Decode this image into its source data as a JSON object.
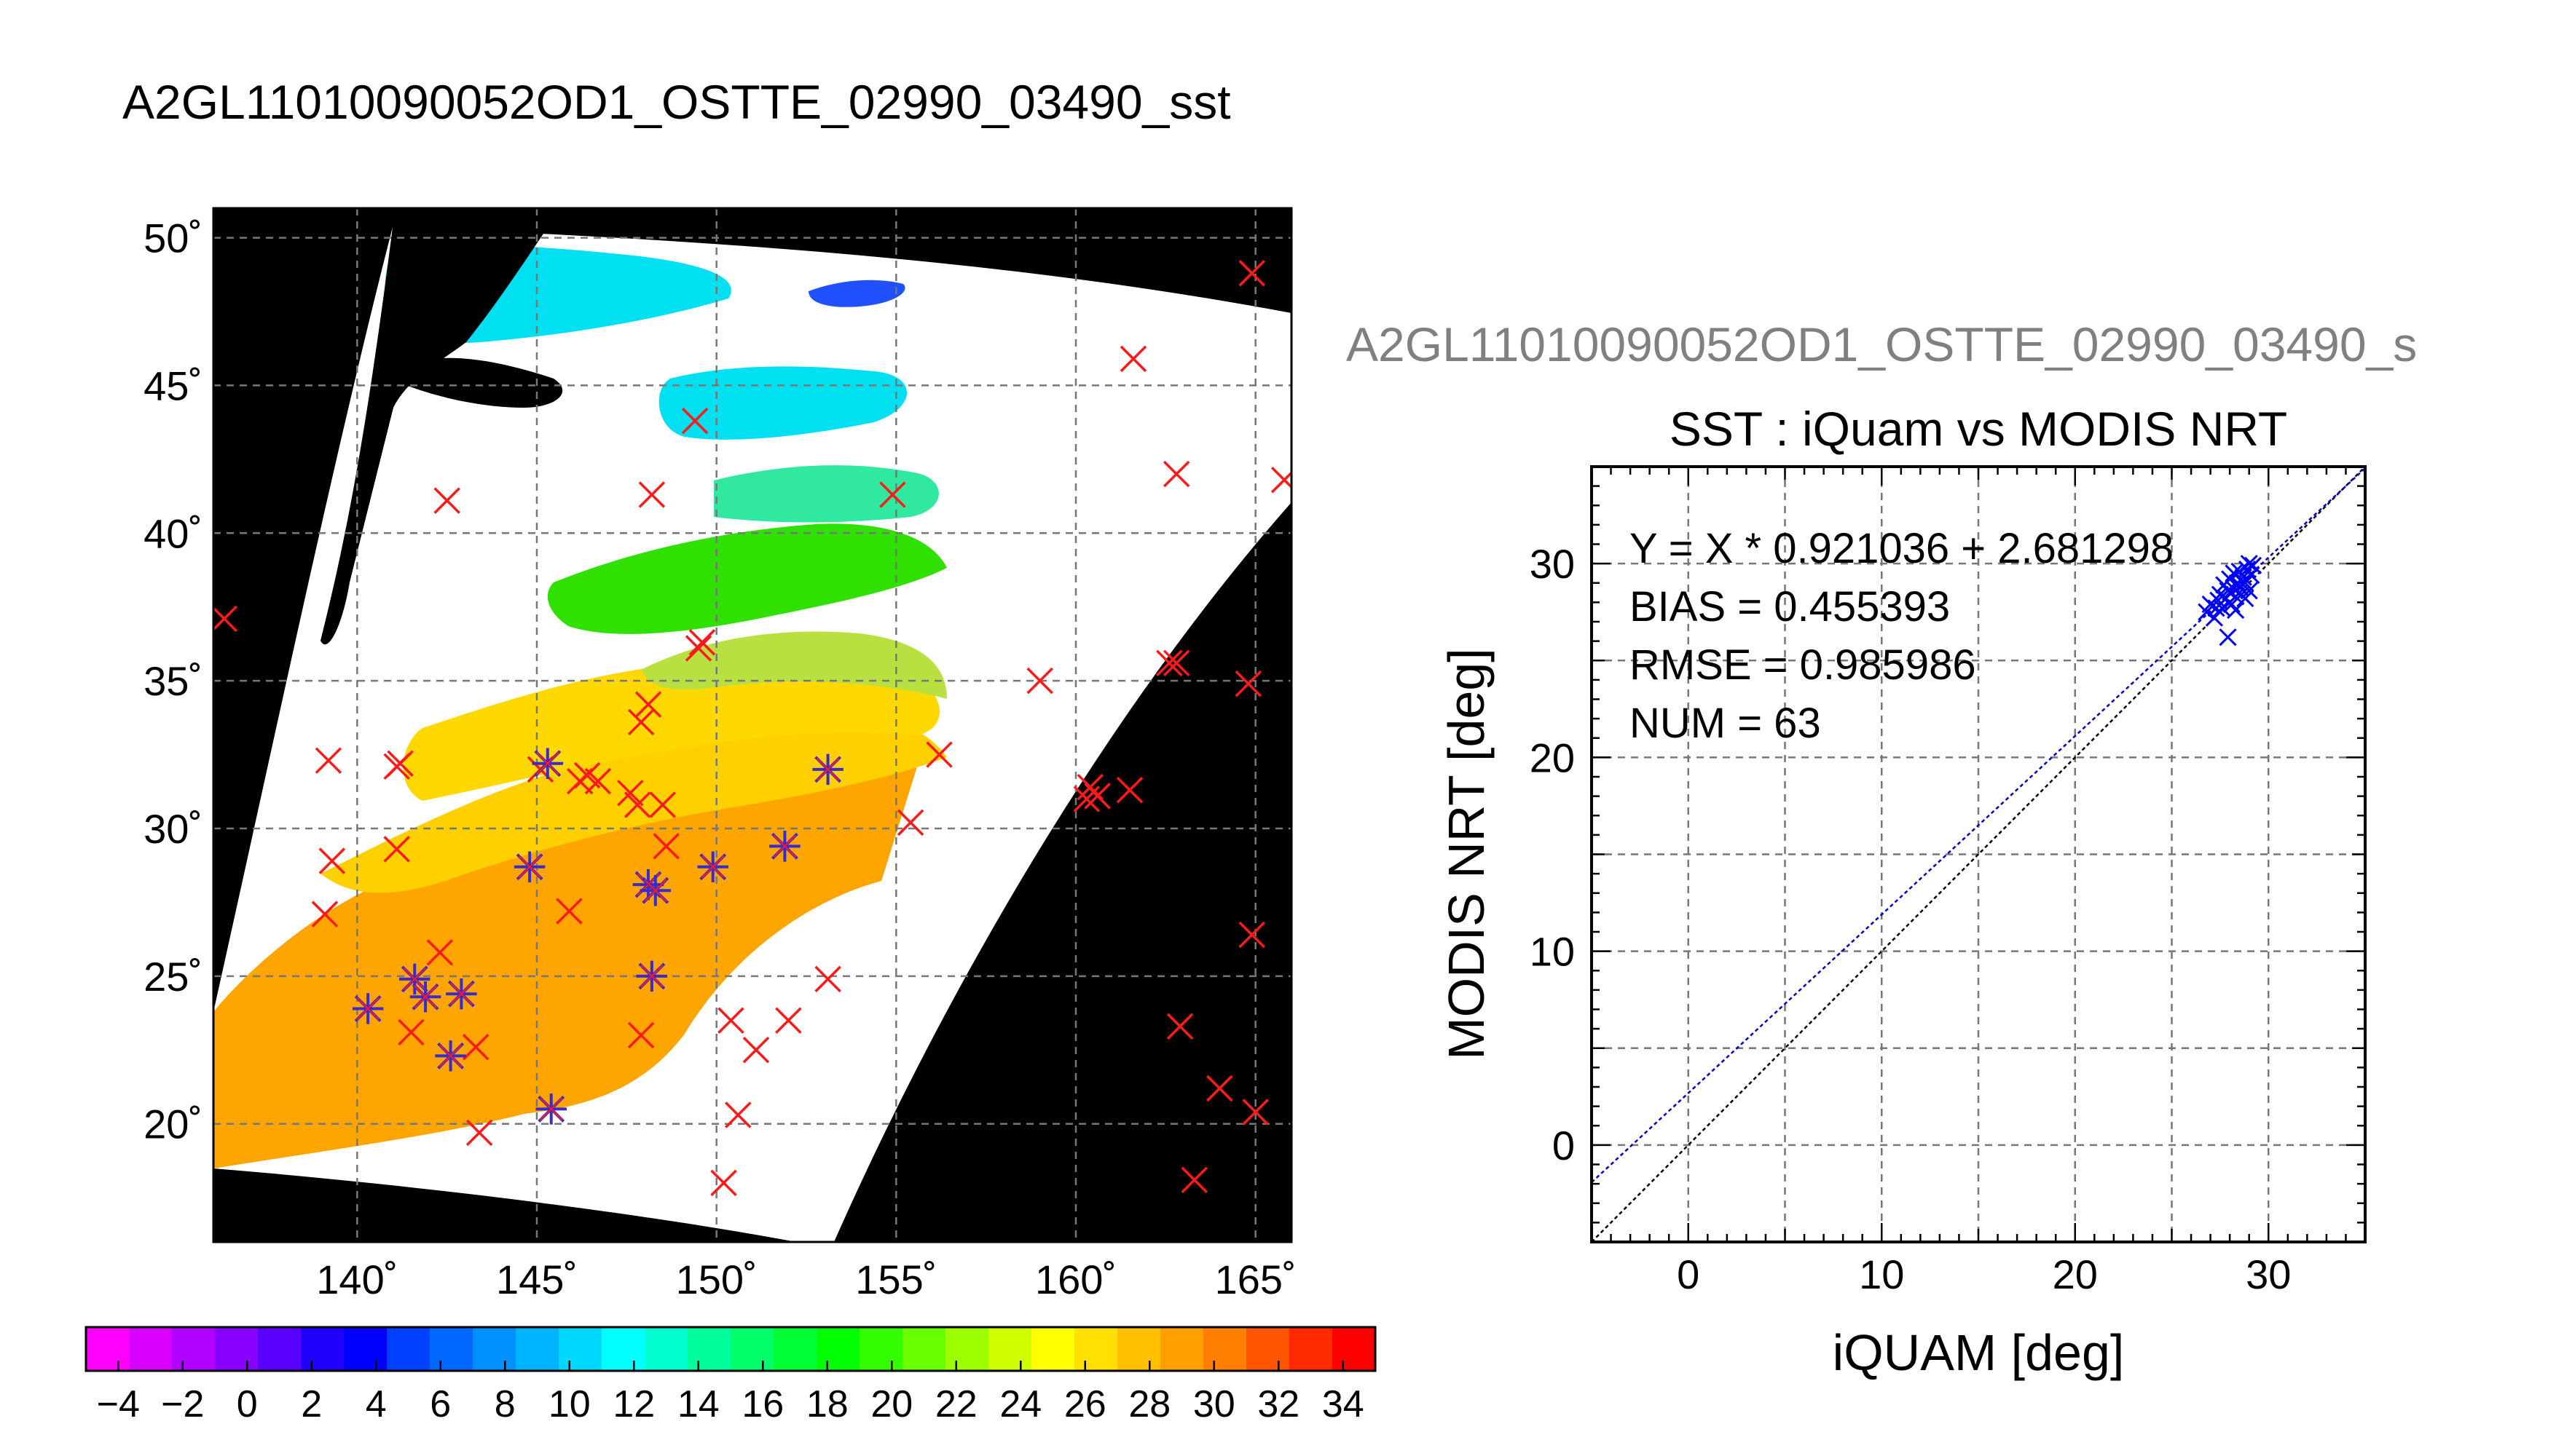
{
  "header": {
    "title": "A2GL11010090052OD1_OSTTE_02990_03490_sst"
  },
  "chart_data": [
    {
      "type": "map",
      "xlim": [
        136,
        166
      ],
      "ylim": [
        16,
        51
      ],
      "x_ticks": [
        140,
        145,
        150,
        155,
        160,
        165
      ],
      "y_ticks": [
        20,
        25,
        30,
        35,
        40,
        45,
        50
      ],
      "x_tick_labels": [
        "140˚",
        "145˚",
        "150˚",
        "155˚",
        "160˚",
        "165˚"
      ],
      "y_tick_labels": [
        "20˚",
        "25˚",
        "30˚",
        "35˚",
        "40˚",
        "45˚",
        "50˚"
      ],
      "grid": true,
      "colors": {
        "background": "#000000",
        "no_data": "#ffffff",
        "matched_marker": "#3a2bd0",
        "unmatched_marker": "#ff1a1a"
      },
      "sst_zones": [
        {
          "name": "30",
          "color": "#ffa500"
        },
        {
          "name": "28",
          "color": "#ffd000"
        },
        {
          "name": "24",
          "color": "#b8e040"
        },
        {
          "name": "18",
          "color": "#30e000"
        },
        {
          "name": "14",
          "color": "#30e8a0"
        },
        {
          "name": "10",
          "color": "#00e0f0"
        },
        {
          "name": "6",
          "color": "#2050ff"
        }
      ],
      "matched_points": [
        [
          140.3,
          23.9
        ],
        [
          141.6,
          24.9
        ],
        [
          141.9,
          24.3
        ],
        [
          142.6,
          22.3
        ],
        [
          142.9,
          24.4
        ],
        [
          144.8,
          28.7
        ],
        [
          145.3,
          32.2
        ],
        [
          148.1,
          28.1
        ],
        [
          148.3,
          27.9
        ],
        [
          148.2,
          25.0
        ],
        [
          149.9,
          28.7
        ],
        [
          151.9,
          29.4
        ],
        [
          153.1,
          32.0
        ],
        [
          145.4,
          20.5
        ]
      ],
      "unmatched_points": [
        [
          136.3,
          37.1
        ],
        [
          139.2,
          32.3
        ],
        [
          139.3,
          28.9
        ],
        [
          139.1,
          27.1
        ],
        [
          141.1,
          32.1
        ],
        [
          141.2,
          32.2
        ],
        [
          141.1,
          29.3
        ],
        [
          142.5,
          41.1
        ],
        [
          142.3,
          25.8
        ],
        [
          141.5,
          23.1
        ],
        [
          143.3,
          22.6
        ],
        [
          143.4,
          19.7
        ],
        [
          145.1,
          32.0
        ],
        [
          146.2,
          31.6
        ],
        [
          146.4,
          31.8
        ],
        [
          146.7,
          31.6
        ],
        [
          147.6,
          31.2
        ],
        [
          147.8,
          30.8
        ],
        [
          145.9,
          27.2
        ],
        [
          148.1,
          34.2
        ],
        [
          147.9,
          33.6
        ],
        [
          148.5,
          30.8
        ],
        [
          148.6,
          29.4
        ],
        [
          147.9,
          23.0
        ],
        [
          148.2,
          41.3
        ],
        [
          149.4,
          43.8
        ],
        [
          149.5,
          36.1
        ],
        [
          149.6,
          36.3
        ],
        [
          150.4,
          23.5
        ],
        [
          150.6,
          20.3
        ],
        [
          150.2,
          18.0
        ],
        [
          151.1,
          22.5
        ],
        [
          152.0,
          23.5
        ],
        [
          153.1,
          24.9
        ],
        [
          154.9,
          41.3
        ],
        [
          155.4,
          30.2
        ],
        [
          156.2,
          32.5
        ],
        [
          159.0,
          35.0
        ],
        [
          160.4,
          31.4
        ],
        [
          160.3,
          31.0
        ],
        [
          160.6,
          31.1
        ],
        [
          161.5,
          31.3
        ],
        [
          161.6,
          45.9
        ],
        [
          162.8,
          42.0
        ],
        [
          162.6,
          35.6
        ],
        [
          162.8,
          35.6
        ],
        [
          162.9,
          23.3
        ],
        [
          163.3,
          18.1
        ],
        [
          164.0,
          21.2
        ],
        [
          164.9,
          48.8
        ],
        [
          164.8,
          34.9
        ],
        [
          164.9,
          26.4
        ],
        [
          165.0,
          20.4
        ],
        [
          165.8,
          41.8
        ]
      ]
    },
    {
      "type": "colorbar",
      "range": [
        -5,
        35
      ],
      "tick_labels": [
        "−4",
        "−2",
        "0",
        "2",
        "4",
        "6",
        "8",
        "10",
        "12",
        "14",
        "16",
        "18",
        "20",
        "22",
        "24",
        "26",
        "28",
        "30",
        "32",
        "34"
      ],
      "bins": [
        "#ff00ff",
        "#d800ff",
        "#b000ff",
        "#8800ff",
        "#5a00ff",
        "#2000ff",
        "#0000ff",
        "#0040ff",
        "#0068ff",
        "#0090ff",
        "#00b4ff",
        "#00d8ff",
        "#00ffff",
        "#00ffd0",
        "#00ff9c",
        "#00ff68",
        "#00ff34",
        "#00ff00",
        "#34ff00",
        "#68ff00",
        "#9cff00",
        "#d0ff00",
        "#ffff00",
        "#ffe000",
        "#ffc000",
        "#ffa000",
        "#ff8000",
        "#ff5400",
        "#ff2a00",
        "#ff0000"
      ]
    },
    {
      "type": "scatter",
      "suptitle": "A2GL11010090052OD1_OSTTE_02990_03490_s",
      "title": "SST : iQuam vs MODIS NRT",
      "xlabel": "iQUAM [deg]",
      "ylabel": "MODIS NRT [deg]",
      "xlim": [
        -5,
        35
      ],
      "ylim": [
        -5,
        35
      ],
      "x_ticks": [
        0,
        10,
        20,
        30
      ],
      "y_ticks": [
        0,
        10,
        20,
        30
      ],
      "grid": true,
      "annotations": [
        "Y = X * 0.921036 + 2.681298",
        "BIAS = 0.455393",
        "RMSE = 0.985986",
        "NUM = 63"
      ],
      "fit": {
        "slope": 0.921036,
        "intercept": 2.681298,
        "color": "#0000cc"
      },
      "reference": {
        "slope": 1,
        "intercept": 0,
        "color": "#000000"
      },
      "marker_color": "#0000ff",
      "points": [
        [
          26.8,
          27.5
        ],
        [
          27.0,
          27.9
        ],
        [
          27.2,
          27.2
        ],
        [
          27.4,
          28.1
        ],
        [
          27.5,
          28.4
        ],
        [
          27.6,
          27.7
        ],
        [
          27.7,
          28.9
        ],
        [
          27.8,
          28.2
        ],
        [
          27.9,
          26.2
        ],
        [
          27.9,
          28.6
        ],
        [
          28.0,
          29.2
        ],
        [
          28.1,
          27.9
        ],
        [
          28.2,
          28.7
        ],
        [
          28.2,
          29.5
        ],
        [
          28.3,
          28.3
        ],
        [
          28.4,
          29.0
        ],
        [
          28.5,
          28.8
        ],
        [
          28.5,
          29.6
        ],
        [
          28.6,
          28.4
        ],
        [
          28.7,
          29.3
        ],
        [
          28.8,
          29.0
        ],
        [
          28.9,
          29.7
        ],
        [
          29.0,
          28.6
        ],
        [
          29.1,
          29.4
        ],
        [
          29.2,
          29.9
        ],
        [
          28.0,
          28.0
        ],
        [
          28.3,
          27.6
        ],
        [
          27.3,
          27.7
        ],
        [
          28.8,
          28.2
        ],
        [
          29.0,
          30.0
        ]
      ]
    }
  ]
}
